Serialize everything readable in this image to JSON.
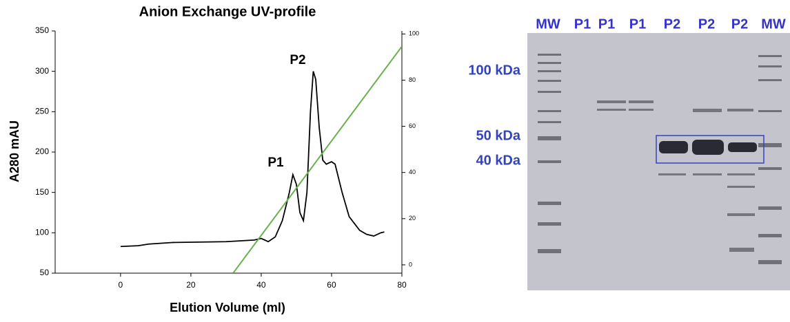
{
  "chart_data": {
    "type": "line",
    "title": "Anion Exchange UV-profile",
    "x_label": "Elution Volume (ml)",
    "y_label": "A280 mAU",
    "annotations": [
      "P1",
      "P2"
    ],
    "xlim": [
      -18.6,
      80
    ],
    "xticks": [
      0,
      20,
      40,
      60,
      80
    ],
    "ylim": [
      50,
      350
    ],
    "yticks": [
      50,
      100,
      150,
      200,
      250,
      300,
      350
    ],
    "y2lim": [
      -3.6,
      101.3
    ],
    "y2ticks": [
      0,
      20,
      40,
      60,
      80,
      100
    ],
    "series": [
      {
        "color": "#000000",
        "x": [
          0,
          5,
          8,
          15,
          30,
          38,
          40,
          42,
          44,
          46,
          48,
          49,
          50,
          51,
          52,
          53,
          54,
          54.8,
          55.5,
          56.5,
          57.5,
          58.5,
          60,
          61,
          63,
          65,
          68,
          70,
          72,
          74,
          75
        ],
        "values": [
          83,
          84,
          86,
          88,
          89,
          91,
          93,
          89,
          95,
          115,
          150,
          172,
          160,
          125,
          115,
          150,
          250,
          300,
          290,
          230,
          190,
          185,
          188,
          185,
          150,
          120,
          103,
          98,
          96,
          100,
          101
        ]
      },
      {
        "color": "#6ab04c",
        "axis": "y2",
        "x": [
          32,
          80
        ],
        "values": [
          -3.6,
          94.6
        ]
      }
    ]
  },
  "gel": {
    "lanes": [
      "MW",
      "P1",
      "P1",
      "P1",
      "P2",
      "P2",
      "P2",
      "MW"
    ],
    "markers": [
      "100 kDa",
      "50 kDa",
      "40 kDa"
    ]
  }
}
